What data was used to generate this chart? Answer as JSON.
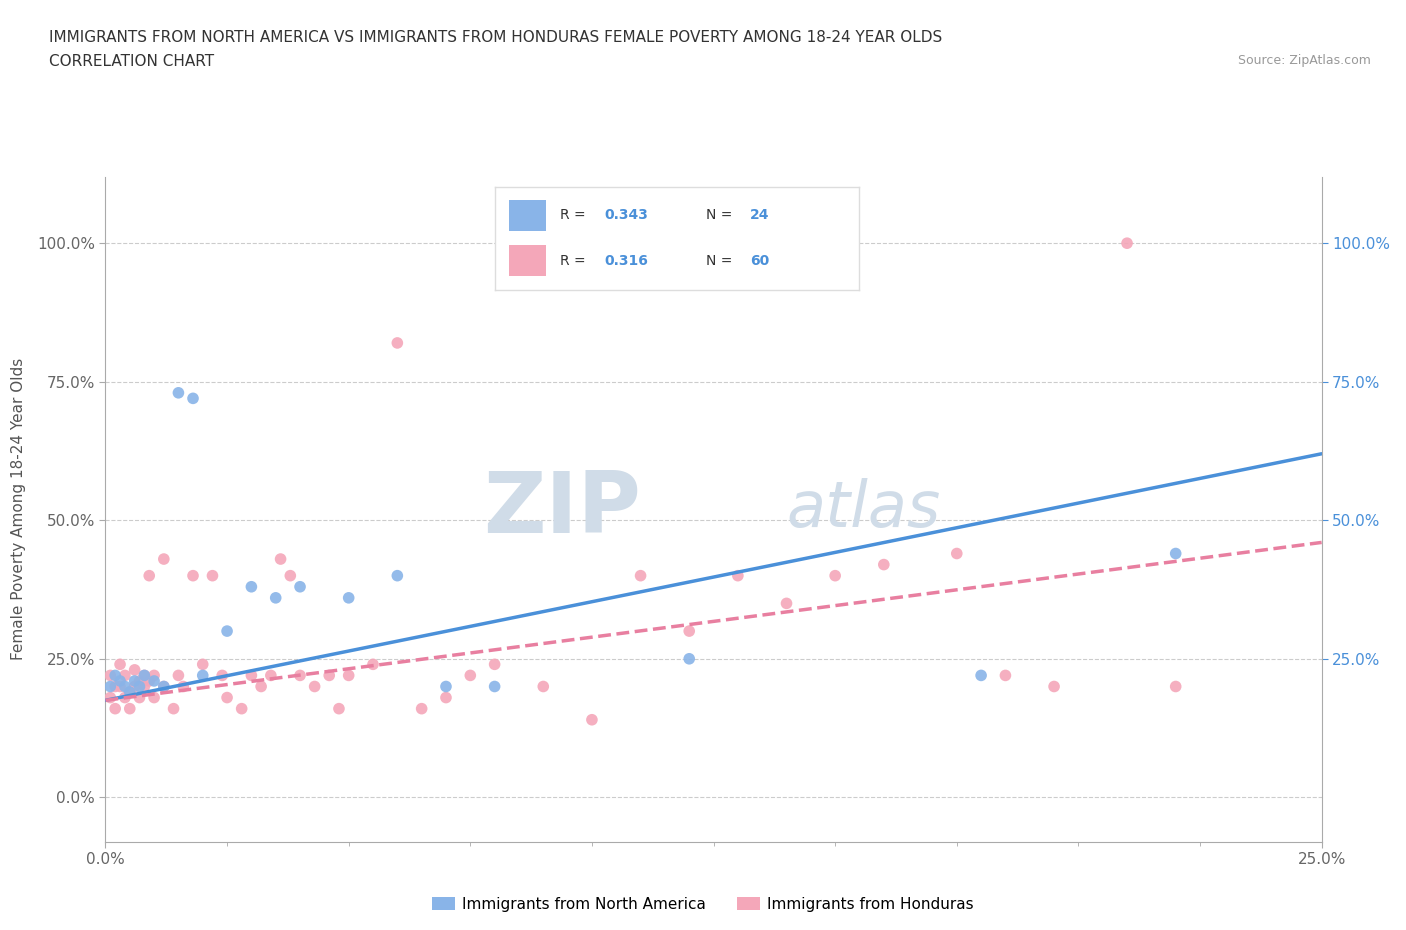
{
  "title_line1": "IMMIGRANTS FROM NORTH AMERICA VS IMMIGRANTS FROM HONDURAS FEMALE POVERTY AMONG 18-24 YEAR OLDS",
  "title_line2": "CORRELATION CHART",
  "source_text": "Source: ZipAtlas.com",
  "ylabel": "Female Poverty Among 18-24 Year Olds",
  "xlim": [
    0.0,
    0.25
  ],
  "ylim": [
    -0.08,
    1.12
  ],
  "xtick_vals": [
    0.0,
    0.25
  ],
  "xtick_labels": [
    "0.0%",
    "25.0%"
  ],
  "ytick_vals": [
    0.0,
    0.25,
    0.5,
    0.75,
    1.0
  ],
  "ytick_labels_left": [
    "0.0%",
    "25.0%",
    "50.0%",
    "75.0%",
    "100.0%"
  ],
  "ytick_vals_right": [
    0.25,
    0.5,
    0.75,
    1.0
  ],
  "ytick_labels_right": [
    "25.0%",
    "50.0%",
    "75.0%",
    "100.0%"
  ],
  "r_north_america": 0.343,
  "n_north_america": 24,
  "r_honduras": 0.316,
  "n_honduras": 60,
  "color_north_america": "#89b4e8",
  "color_honduras": "#f4a7b9",
  "line_color_blue": "#4a90d9",
  "line_color_pink": "#e87fa0",
  "watermark_color": "#d0dce8",
  "legend_label_na": "Immigrants from North America",
  "legend_label_hn": "Immigrants from Honduras",
  "na_x": [
    0.001,
    0.002,
    0.003,
    0.004,
    0.005,
    0.006,
    0.007,
    0.008,
    0.01,
    0.012,
    0.015,
    0.018,
    0.02,
    0.025,
    0.03,
    0.035,
    0.04,
    0.05,
    0.06,
    0.07,
    0.08,
    0.12,
    0.18,
    0.22
  ],
  "na_y": [
    0.2,
    0.22,
    0.21,
    0.2,
    0.19,
    0.21,
    0.2,
    0.22,
    0.21,
    0.2,
    0.73,
    0.72,
    0.22,
    0.3,
    0.38,
    0.36,
    0.38,
    0.36,
    0.4,
    0.2,
    0.2,
    0.25,
    0.22,
    0.44
  ],
  "hn_x": [
    0.001,
    0.001,
    0.002,
    0.002,
    0.003,
    0.003,
    0.004,
    0.004,
    0.005,
    0.005,
    0.006,
    0.006,
    0.007,
    0.007,
    0.008,
    0.008,
    0.009,
    0.009,
    0.01,
    0.01,
    0.012,
    0.012,
    0.014,
    0.015,
    0.016,
    0.018,
    0.02,
    0.022,
    0.024,
    0.025,
    0.028,
    0.03,
    0.032,
    0.034,
    0.036,
    0.038,
    0.04,
    0.043,
    0.046,
    0.048,
    0.05,
    0.055,
    0.06,
    0.065,
    0.07,
    0.075,
    0.08,
    0.09,
    0.1,
    0.11,
    0.12,
    0.13,
    0.14,
    0.15,
    0.16,
    0.175,
    0.185,
    0.195,
    0.21,
    0.22
  ],
  "hn_y": [
    0.22,
    0.18,
    0.2,
    0.16,
    0.2,
    0.24,
    0.18,
    0.22,
    0.16,
    0.19,
    0.2,
    0.23,
    0.21,
    0.18,
    0.2,
    0.22,
    0.21,
    0.4,
    0.18,
    0.22,
    0.2,
    0.43,
    0.16,
    0.22,
    0.2,
    0.4,
    0.24,
    0.4,
    0.22,
    0.18,
    0.16,
    0.22,
    0.2,
    0.22,
    0.43,
    0.4,
    0.22,
    0.2,
    0.22,
    0.16,
    0.22,
    0.24,
    0.82,
    0.16,
    0.18,
    0.22,
    0.24,
    0.2,
    0.14,
    0.4,
    0.3,
    0.4,
    0.35,
    0.4,
    0.42,
    0.44,
    0.22,
    0.2,
    1.0,
    0.2
  ],
  "na_line_x": [
    0.0,
    0.25
  ],
  "na_line_y": [
    0.175,
    0.62
  ],
  "hn_line_x": [
    0.0,
    0.25
  ],
  "hn_line_y": [
    0.175,
    0.46
  ]
}
